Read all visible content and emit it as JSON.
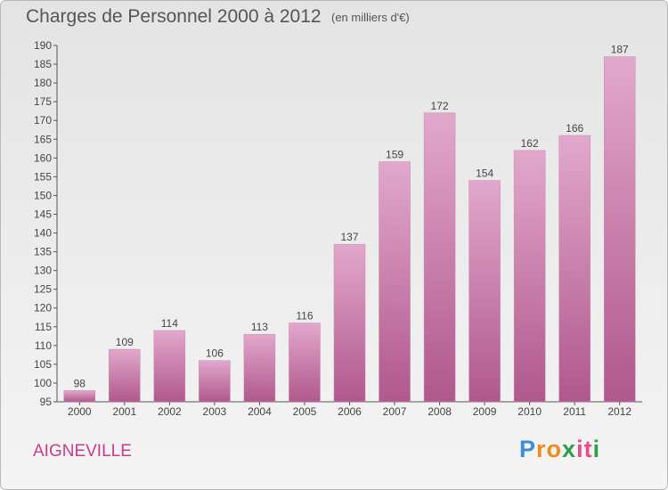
{
  "title": "Charges de Personnel 2000 à 2012",
  "subtitle": "(en milliers d'€)",
  "commune": "AIGNEVILLE",
  "logo": {
    "text": "Proxiti",
    "letters": [
      "P",
      "r",
      "o",
      "x",
      "i",
      "t",
      "i"
    ],
    "colors": [
      "#3a8fd6",
      "#f08a1c",
      "#f08a1c",
      "#2aa04a",
      "#e84a8a",
      "#e84a8a",
      "#2aa04a"
    ]
  },
  "colors": {
    "bar_top": "#e2a8cc",
    "bar_bottom": "#b0588c",
    "accent": "#c83c8c"
  },
  "chart_data": {
    "type": "bar",
    "categories": [
      "2000",
      "2001",
      "2002",
      "2003",
      "2004",
      "2005",
      "2006",
      "2007",
      "2008",
      "2009",
      "2010",
      "2011",
      "2012"
    ],
    "values": [
      98,
      109,
      114,
      106,
      113,
      116,
      137,
      159,
      172,
      154,
      162,
      166,
      187
    ],
    "ylim": [
      95,
      190
    ],
    "yticks": [
      95,
      100,
      105,
      110,
      115,
      120,
      125,
      130,
      135,
      140,
      145,
      150,
      155,
      160,
      165,
      170,
      175,
      180,
      185,
      190
    ],
    "grid": false,
    "data_labels": true
  }
}
